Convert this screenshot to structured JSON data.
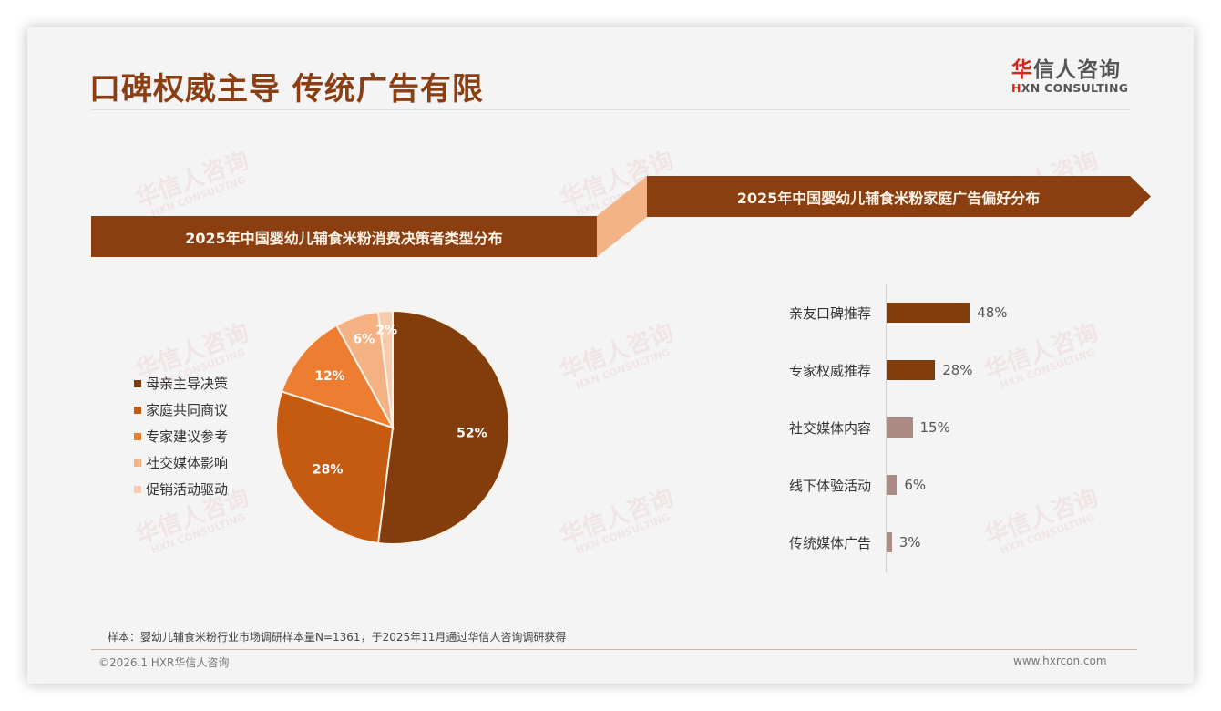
{
  "title": "口碑权威主导 传统广告有限",
  "logo": {
    "cn_first": "华",
    "cn_rest": "信人咨询",
    "en_first": "H",
    "en_rest": "XN CONSULTING"
  },
  "watermark": {
    "cn": "华信人咨询",
    "en": "HXN CONSULTING"
  },
  "banners": {
    "left": "2025年中国婴幼儿辅食米粉消费决策者类型分布",
    "right": "2025年中国婴幼儿辅食米粉家庭广告偏好分布"
  },
  "colors": {
    "brand_brown": "#8b3e10",
    "title_brown": "#8a3e12",
    "connector_peach": "#f2b386",
    "logo_red": "#d9261c"
  },
  "chart_data": [
    {
      "type": "pie",
      "title": "2025年中国婴幼儿辅食米粉消费决策者类型分布",
      "categories": [
        "母亲主导决策",
        "家庭共同商议",
        "专家建议参考",
        "社交媒体影响",
        "促销活动驱动"
      ],
      "values": [
        52,
        28,
        12,
        6,
        2
      ],
      "labels": [
        "52%",
        "28%",
        "12%",
        "6%",
        "2%"
      ],
      "colors": [
        "#833c0c",
        "#c55a11",
        "#ed7d31",
        "#f4b183",
        "#f8cbad"
      ],
      "legend_position": "left",
      "start_angle": "12 o'clock, clockwise"
    },
    {
      "type": "bar",
      "orientation": "horizontal",
      "title": "2025年中国婴幼儿辅食米粉家庭广告偏好分布",
      "categories": [
        "亲友口碑推荐",
        "专家权威推荐",
        "社交媒体内容",
        "线下体验活动",
        "传统媒体广告"
      ],
      "values": [
        48,
        28,
        15,
        6,
        3
      ],
      "labels": [
        "48%",
        "28%",
        "15%",
        "6%",
        "3%"
      ],
      "colors": [
        "#833c0c",
        "#833c0c",
        "#ab8b83",
        "#ab8b83",
        "#ab8b83"
      ],
      "xlabel": "",
      "ylabel": "",
      "grid": false
    }
  ],
  "source": "样本：婴幼儿辅食米粉行业市场调研样本量N=1361，于2025年11月通过华信人咨询调研获得",
  "footer": {
    "copyright": "©2026.1 HXR华信人咨询",
    "website": "www.hxrcon.com"
  }
}
